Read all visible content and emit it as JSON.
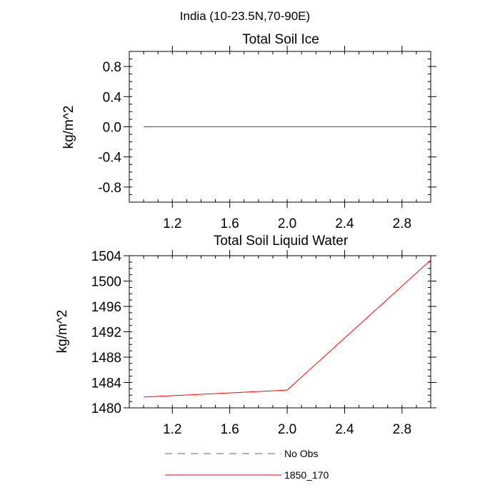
{
  "figure": {
    "region_title": "India (10-23.5N,70-90E)"
  },
  "chart_data": [
    {
      "type": "line",
      "title": "Total Soil Ice",
      "xlabel": "",
      "ylabel": "kg/m^2",
      "xlim": [
        0.9,
        3.0
      ],
      "ylim": [
        -1.0,
        1.0
      ],
      "x_ticks": [
        1.2,
        1.6,
        2.0,
        2.4,
        2.8
      ],
      "x_tick_labels": [
        "1.2",
        "1.6",
        "2.0",
        "2.4",
        "2.8"
      ],
      "y_ticks": [
        -0.8,
        -0.4,
        0.0,
        0.4,
        0.8
      ],
      "y_tick_labels": [
        "-0.8",
        "-0.4",
        "0.0",
        "0.4",
        "0.8"
      ],
      "x_minor_step": 0.1,
      "y_minor_step": 0.1,
      "series": [
        {
          "name": "1850_170",
          "color": "#ff0000",
          "x": [
            1,
            2,
            3
          ],
          "values": [
            0.0,
            0.0,
            0.0
          ]
        }
      ]
    },
    {
      "type": "line",
      "title": "Total Soil Liquid Water",
      "xlabel": "",
      "ylabel": "kg/m^2",
      "xlim": [
        0.9,
        3.0
      ],
      "ylim": [
        1480,
        1504
      ],
      "x_ticks": [
        1.2,
        1.6,
        2.0,
        2.4,
        2.8
      ],
      "x_tick_labels": [
        "1.2",
        "1.6",
        "2.0",
        "2.4",
        "2.8"
      ],
      "y_ticks": [
        1480,
        1484,
        1488,
        1492,
        1496,
        1500,
        1504
      ],
      "y_tick_labels": [
        "1480",
        "1484",
        "1488",
        "1492",
        "1496",
        "1500",
        "1504"
      ],
      "x_minor_step": 0.1,
      "y_minor_step": 1,
      "series": [
        {
          "name": "1850_170",
          "color": "#ff0000",
          "x": [
            1,
            2,
            3
          ],
          "values": [
            1481.7,
            1482.8,
            1503.3
          ]
        }
      ]
    }
  ],
  "legend": {
    "items": [
      {
        "label": "No Obs",
        "color": "#5a5aa8",
        "style": "dashed"
      },
      {
        "label": "1850_170",
        "color": "#ff0000",
        "style": "solid"
      }
    ]
  }
}
